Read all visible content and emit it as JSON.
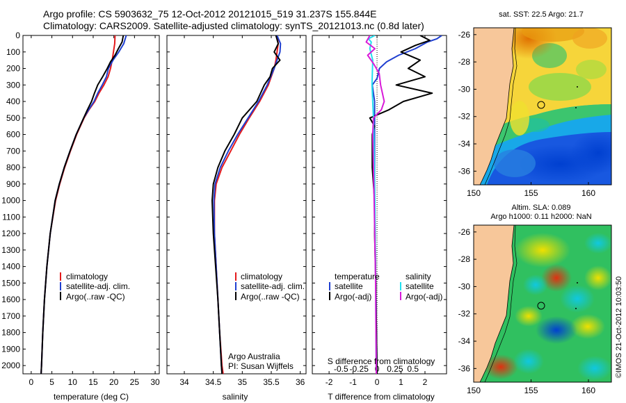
{
  "header": {
    "title_line1": "Argo profile: CS 5903632_75 12-Oct-2012 20121015_519 31.237S 155.844E",
    "title_line2": "Climatology: CARS2009. Satellite-adjusted climatology: synTS_20121013.nc (0.8d later)"
  },
  "colors": {
    "climatology": "#e41a1c",
    "satellite": "#1f3fd0",
    "argo": "#000000",
    "sal_satellite": "#22e0f0",
    "sal_argo": "#d81ad8",
    "land": "#f7c79a"
  },
  "chart_data": [
    {
      "type": "line",
      "name": "temperature-profile",
      "xlabel": "temperature (deg C)",
      "xlim": [
        -2,
        31
      ],
      "ylim": [
        0,
        2050
      ],
      "xticks": [
        "0",
        "5",
        "10",
        "15",
        "20",
        "25",
        "30"
      ],
      "xtick_values": [
        0,
        5,
        10,
        15,
        20,
        25,
        30
      ],
      "yticks": [
        "0",
        "100",
        "200",
        "300",
        "400",
        "500",
        "600",
        "700",
        "800",
        "900",
        "1000",
        "1100",
        "1200",
        "1300",
        "1400",
        "1500",
        "1600",
        "1700",
        "1800",
        "1900",
        "2000"
      ],
      "ytick_values": [
        0,
        100,
        200,
        300,
        400,
        500,
        600,
        700,
        800,
        900,
        1000,
        1100,
        1200,
        1300,
        1400,
        1500,
        1600,
        1700,
        1800,
        1900,
        2000
      ],
      "legend": [
        "climatology",
        "satellite-adj. clim.",
        "Argo(..raw -QC)"
      ],
      "series": [
        {
          "name": "climatology",
          "depth": [
            0,
            50,
            100,
            150,
            200,
            250,
            300,
            350,
            400,
            450,
            500,
            600,
            700,
            800,
            900,
            1000,
            1200,
            1400,
            1600,
            1800,
            2000,
            2050
          ],
          "values": [
            20.3,
            20.2,
            19.9,
            19.6,
            19.2,
            18.6,
            17.6,
            16.4,
            15.4,
            14.0,
            12.8,
            11.0,
            9.5,
            8.1,
            6.9,
            5.9,
            4.6,
            3.8,
            3.2,
            2.8,
            2.5,
            2.4
          ]
        },
        {
          "name": "satellite-adj. clim.",
          "depth": [
            0,
            50,
            100,
            150,
            200,
            250,
            300,
            350,
            400,
            450,
            500,
            600,
            700,
            800,
            900,
            1000,
            1200,
            1400,
            1600,
            1800,
            2000,
            2050
          ],
          "values": [
            23.0,
            22.4,
            21.2,
            19.8,
            18.7,
            18.2,
            17.2,
            16.1,
            15.2,
            13.9,
            12.7,
            10.9,
            9.4,
            8.0,
            6.8,
            5.8,
            4.6,
            3.8,
            3.2,
            2.8,
            2.5,
            2.4
          ]
        },
        {
          "name": "Argo(..raw -QC)",
          "depth": [
            0,
            40,
            80,
            120,
            160,
            200,
            250,
            300,
            350,
            400,
            450,
            500,
            600,
            700,
            800,
            900,
            1000,
            1200,
            1400,
            1600,
            1800,
            2000,
            2050
          ],
          "values": [
            22.3,
            22.0,
            21.1,
            20.3,
            19.2,
            18.4,
            17.3,
            16.1,
            15.3,
            14.6,
            13.6,
            12.7,
            10.9,
            9.4,
            8.0,
            6.8,
            5.8,
            4.6,
            3.8,
            3.2,
            2.8,
            2.5,
            2.4
          ]
        }
      ]
    },
    {
      "type": "line",
      "name": "salinity-profile",
      "xlabel": "salinity",
      "xlim": [
        33.7,
        36.1
      ],
      "ylim": [
        0,
        2050
      ],
      "xticks": [
        "34",
        "34.5",
        "35",
        "35.5",
        "36"
      ],
      "xtick_values": [
        34,
        34.5,
        35,
        35.5,
        36
      ],
      "legend": [
        "climatology",
        "satellite-adj. clim.",
        "Argo(..raw -QC)"
      ],
      "annotations": [
        "Argo Australia",
        "PI: Susan Wijffels"
      ],
      "series": [
        {
          "name": "climatology",
          "depth": [
            0,
            50,
            100,
            150,
            200,
            300,
            400,
            500,
            600,
            700,
            800,
            900,
            1000,
            1200,
            1400,
            1600,
            1800,
            2000,
            2050
          ],
          "values": [
            35.6,
            35.62,
            35.6,
            35.58,
            35.55,
            35.45,
            35.3,
            35.12,
            34.95,
            34.8,
            34.65,
            34.55,
            34.52,
            34.52,
            34.55,
            34.58,
            34.61,
            34.65,
            34.67
          ]
        },
        {
          "name": "satellite-adj. clim.",
          "depth": [
            0,
            50,
            100,
            150,
            200,
            300,
            400,
            500,
            600,
            700,
            800,
            900,
            1000,
            1200,
            1400,
            1600,
            1800,
            2000,
            2050
          ],
          "values": [
            35.6,
            35.66,
            35.65,
            35.6,
            35.55,
            35.43,
            35.28,
            35.1,
            34.92,
            34.76,
            34.62,
            34.53,
            34.51,
            34.52,
            34.55,
            34.58,
            34.61,
            34.64,
            34.65
          ]
        },
        {
          "name": "Argo(..raw -QC)",
          "depth": [
            0,
            50,
            100,
            150,
            200,
            250,
            300,
            400,
            500,
            600,
            700,
            800,
            900,
            1000,
            1200,
            1400,
            1600,
            1800,
            2000,
            2050
          ],
          "values": [
            35.58,
            35.62,
            35.55,
            35.65,
            35.52,
            35.48,
            35.38,
            35.25,
            35.0,
            34.86,
            34.7,
            34.58,
            34.5,
            34.48,
            34.5,
            34.54,
            34.58,
            34.61,
            34.64,
            34.65
          ]
        }
      ]
    },
    {
      "type": "line",
      "name": "difference-profile",
      "xlabel": "T difference from climatology",
      "top_label": "S difference from climatology",
      "xlim": [
        -2.7,
        2.9
      ],
      "ylim": [
        0,
        2050
      ],
      "xticks": [
        "-2",
        "-1",
        "0",
        "1",
        "2"
      ],
      "xtick_values": [
        -2,
        -1,
        0,
        1,
        2
      ],
      "sticks": [
        "-0.5",
        "-0.25",
        "0",
        "0.25",
        "0.5"
      ],
      "stick_values": [
        -0.5,
        -0.25,
        0,
        0.25,
        0.5
      ],
      "legend_t_title": "temperature",
      "legend_s_title": "salinity",
      "legend_t": [
        "satellite",
        "Argo(-adj)"
      ],
      "legend_s": [
        "satellite",
        "Argo(-adj)"
      ],
      "series": [
        {
          "name": "T satellite",
          "depth": [
            0,
            20,
            40,
            80,
            120,
            160,
            200,
            260,
            300,
            400,
            500,
            600,
            800,
            1000,
            1500,
            2050
          ],
          "values": [
            2.7,
            2.5,
            2.1,
            1.6,
            0.9,
            0.4,
            0.1,
            0.0,
            -0.2,
            -0.1,
            -0.1,
            -0.1,
            -0.1,
            -0.1,
            -0.05,
            0.0
          ]
        },
        {
          "name": "T Argo(-adj)",
          "depth": [
            0,
            30,
            60,
            100,
            150,
            200,
            250,
            300,
            350,
            400,
            450,
            500,
            550,
            600,
            800,
            1000,
            1200,
            1500,
            2050
          ],
          "values": [
            1.8,
            2.2,
            1.6,
            1.0,
            1.8,
            1.3,
            2.0,
            0.8,
            2.3,
            1.1,
            0.5,
            -0.3,
            -0.1,
            -0.2,
            -0.2,
            -0.1,
            -0.1,
            -0.05,
            0.0
          ]
        },
        {
          "name": "S satellite",
          "depth": [
            0,
            20,
            40,
            80,
            150,
            300,
            500,
            700,
            1000,
            1500,
            2050
          ],
          "values": [
            -0.03,
            -0.12,
            -0.08,
            -0.1,
            -0.06,
            -0.07,
            -0.05,
            -0.04,
            -0.03,
            -0.02,
            -0.01
          ]
        },
        {
          "name": "S Argo(-adj)",
          "depth": [
            0,
            40,
            80,
            120,
            170,
            230,
            300,
            400,
            450,
            500,
            600,
            800,
            1000,
            1500,
            2050
          ],
          "values": [
            -0.1,
            -0.15,
            -0.03,
            -0.13,
            -0.05,
            0.03,
            0.05,
            0.1,
            0.06,
            -0.05,
            -0.06,
            -0.05,
            -0.04,
            -0.02,
            -0.01
          ]
        }
      ]
    },
    {
      "type": "heatmap",
      "name": "sst-map",
      "title": "sat. SST: 22.5 Argo: 21.7",
      "xticks": [
        "150",
        "155",
        "160"
      ],
      "xtick_values": [
        150,
        155,
        160
      ],
      "yticks": [
        "-26",
        "-28",
        "-30",
        "-32",
        "-34",
        "-36"
      ],
      "ytick_values": [
        -26,
        -28,
        -30,
        -32,
        -34,
        -36
      ],
      "lon_range": [
        150,
        162
      ],
      "lat_range": [
        -37,
        -25.5
      ],
      "argo_position": {
        "lon": 155.844,
        "lat": -31.237
      }
    },
    {
      "type": "heatmap",
      "name": "sla-map",
      "title_line1": "Altim. SLA: 0.089",
      "title_line2": "Argo h1000: 0.11 h2000: NaN",
      "xticks": [
        "150",
        "155",
        "160"
      ],
      "xtick_values": [
        150,
        155,
        160
      ],
      "yticks": [
        "-26",
        "-28",
        "-30",
        "-32",
        "-34",
        "-36"
      ],
      "ytick_values": [
        -26,
        -28,
        -30,
        -32,
        -34,
        -36
      ],
      "lon_range": [
        150,
        162
      ],
      "lat_range": [
        -37,
        -25.5
      ],
      "argo_position": {
        "lon": 155.844,
        "lat": -31.237
      }
    }
  ],
  "footer": {
    "side_label": "©IMOS 21-Oct-2012 10:03:50"
  }
}
